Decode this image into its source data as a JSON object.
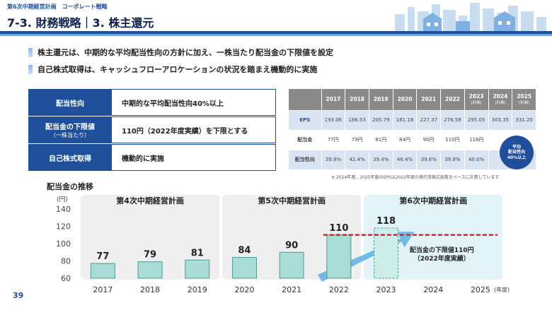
{
  "header": {
    "plan_label": "第6次中期経営計画　コーポレート戦略",
    "title": "7-3. 財務戦略｜3. 株主還元"
  },
  "bullets": [
    "株主還元は、中期的な平均配当性向の方針に加え、一株当たり配当金の下限値を設定",
    "自己株式取得は、キャッシュフローアロケーションの状況を踏まえ機動的に実施"
  ],
  "policy_table": [
    {
      "label": "配当性向",
      "sub": "",
      "value": "中期的な平均配当性向40%以上"
    },
    {
      "label": "配当金の下限値",
      "sub": "（一株当たり）",
      "value": "110円（2022年度実績）を下限とする"
    },
    {
      "label": "自己株式取得",
      "sub": "",
      "value": "機動的に実施"
    }
  ],
  "eps_table": {
    "years": [
      {
        "year": "2017",
        "sub": ""
      },
      {
        "year": "2018",
        "sub": ""
      },
      {
        "year": "2019",
        "sub": ""
      },
      {
        "year": "2020",
        "sub": ""
      },
      {
        "year": "2021",
        "sub": ""
      },
      {
        "year": "2022",
        "sub": ""
      },
      {
        "year": "2023",
        "sub": "(計画)"
      },
      {
        "year": "2024",
        "sub": "(計画)"
      },
      {
        "year": "2025",
        "sub": "(計画)"
      }
    ],
    "rows": [
      {
        "label": "EPS",
        "values": [
          "193.06",
          "186.53",
          "205.79",
          "181.18",
          "227.37",
          "276.58",
          "295.05",
          "303.35",
          "331.20"
        ]
      },
      {
        "label": "配当金",
        "values": [
          "77円",
          "79円",
          "81円",
          "84円",
          "90円",
          "110円",
          "118円",
          "",
          ""
        ]
      },
      {
        "label": "配当性向",
        "values": [
          "39.9%",
          "42.4%",
          "39.4%",
          "46.4%",
          "39.6%",
          "39.8%",
          "40.0%",
          "",
          ""
        ]
      }
    ],
    "badge_lines": [
      "平均",
      "配当性向",
      "40%以上"
    ],
    "note": "※ 2024年度、2025年度のEPSは2023年度の発行済株式総数をベースに計算しています"
  },
  "chart_title": "配当金の推移",
  "slide_number": "39",
  "chart_data": {
    "type": "bar",
    "categories": [
      "2017",
      "2018",
      "2019",
      "2020",
      "2021",
      "2022",
      "2023",
      "2024",
      "2025"
    ],
    "values": [
      77,
      79,
      81,
      84,
      90,
      110,
      118,
      null,
      null
    ],
    "value_labels": [
      "77",
      "79",
      "81",
      "84",
      "90",
      "110",
      "118",
      "",
      ""
    ],
    "ylabel": "(円)",
    "xlabel": "(年度)",
    "ylim": [
      60,
      140
    ],
    "yticks": [
      60,
      80,
      100,
      120,
      140
    ],
    "grid": false,
    "bar_color": "#a9dcd6",
    "bar_border": "#4a9e94",
    "plan_bar_color": "#cfeeea",
    "periods": [
      {
        "label": "第4次中期経営計画",
        "start": "2017",
        "end": "2019",
        "bg": "#efefef"
      },
      {
        "label": "第5次中期経営計画",
        "start": "2020",
        "end": "2022",
        "bg": "#efefef"
      },
      {
        "label": "第6次中期経営計画",
        "start": "2023",
        "end": "2025",
        "bg": "#e3f4f8"
      }
    ],
    "floor_line": {
      "value": 110,
      "color": "#d9232a",
      "label_lines": [
        "配当金の下限値110円",
        "（2022年度実績）"
      ]
    },
    "arrow_color": "#4aa7e0"
  }
}
